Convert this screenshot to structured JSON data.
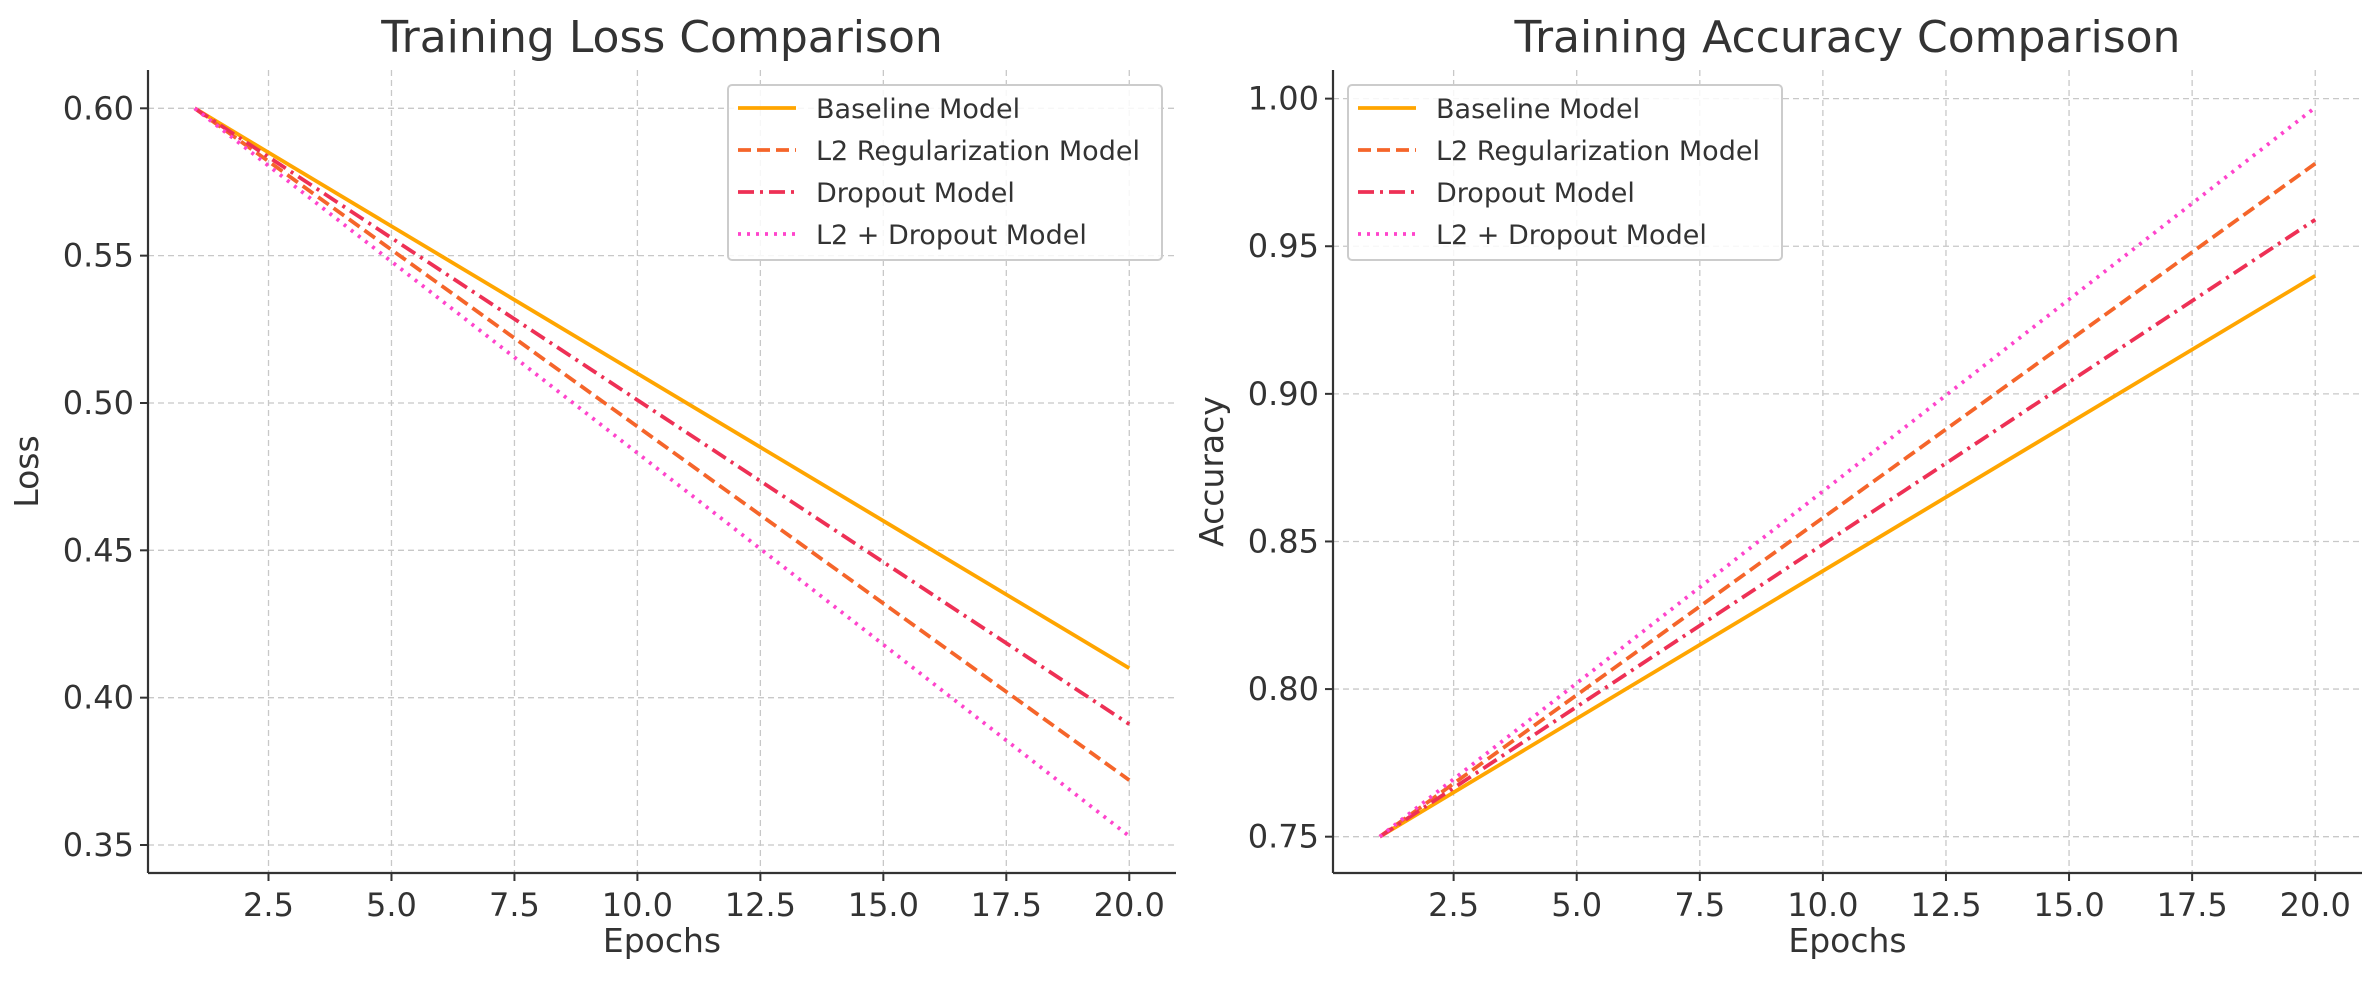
{
  "chart_data": [
    {
      "type": "line",
      "title": "Training Loss Comparison",
      "xlabel": "Epochs",
      "ylabel": "Loss",
      "xlim": [
        0.05,
        20.95
      ],
      "ylim": [
        0.3405,
        0.613
      ],
      "xticks": [
        2.5,
        5.0,
        7.5,
        10.0,
        12.5,
        15.0,
        17.5,
        20.0
      ],
      "xtick_labels": [
        "2.5",
        "5.0",
        "7.5",
        "10.0",
        "12.5",
        "15.0",
        "17.5",
        "20.0"
      ],
      "yticks": [
        0.35,
        0.4,
        0.45,
        0.5,
        0.55,
        0.6
      ],
      "ytick_labels": [
        "0.35",
        "0.40",
        "0.45",
        "0.50",
        "0.55",
        "0.60"
      ],
      "grid": true,
      "legend_position": "top-right",
      "x": [
        1,
        20
      ],
      "series": [
        {
          "name": "Baseline Model",
          "values": [
            0.6,
            0.41
          ],
          "color": "#FFA500",
          "style": "solid"
        },
        {
          "name": "L2 Regularization Model",
          "values": [
            0.6,
            0.372
          ],
          "color": "#F5652A",
          "style": "dashed"
        },
        {
          "name": "Dropout Model",
          "values": [
            0.6,
            0.391
          ],
          "color": "#EE3055",
          "style": "dashdot"
        },
        {
          "name": "L2 + Dropout Model",
          "values": [
            0.6,
            0.353
          ],
          "color": "#FF44CC",
          "style": "dotted"
        }
      ]
    },
    {
      "type": "line",
      "title": "Training Accuracy Comparison",
      "xlabel": "Epochs",
      "ylabel": "Accuracy",
      "xlim": [
        0.05,
        20.95
      ],
      "ylim": [
        0.7377,
        1.0097
      ],
      "xticks": [
        2.5,
        5.0,
        7.5,
        10.0,
        12.5,
        15.0,
        17.5,
        20.0
      ],
      "xtick_labels": [
        "2.5",
        "5.0",
        "7.5",
        "10.0",
        "12.5",
        "15.0",
        "17.5",
        "20.0"
      ],
      "yticks": [
        0.75,
        0.8,
        0.85,
        0.9,
        0.95,
        1.0
      ],
      "ytick_labels": [
        "0.75",
        "0.80",
        "0.85",
        "0.90",
        "0.95",
        "1.00"
      ],
      "grid": true,
      "legend_position": "top-left",
      "x": [
        1,
        20
      ],
      "series": [
        {
          "name": "Baseline Model",
          "values": [
            0.75,
            0.94
          ],
          "color": "#FFA500",
          "style": "solid"
        },
        {
          "name": "L2 Regularization Model",
          "values": [
            0.75,
            0.978
          ],
          "color": "#F5652A",
          "style": "dashed"
        },
        {
          "name": "Dropout Model",
          "values": [
            0.75,
            0.959
          ],
          "color": "#EE3055",
          "style": "dashdot"
        },
        {
          "name": "L2 + Dropout Model",
          "values": [
            0.75,
            0.997
          ],
          "color": "#FF44CC",
          "style": "dotted"
        }
      ]
    }
  ]
}
